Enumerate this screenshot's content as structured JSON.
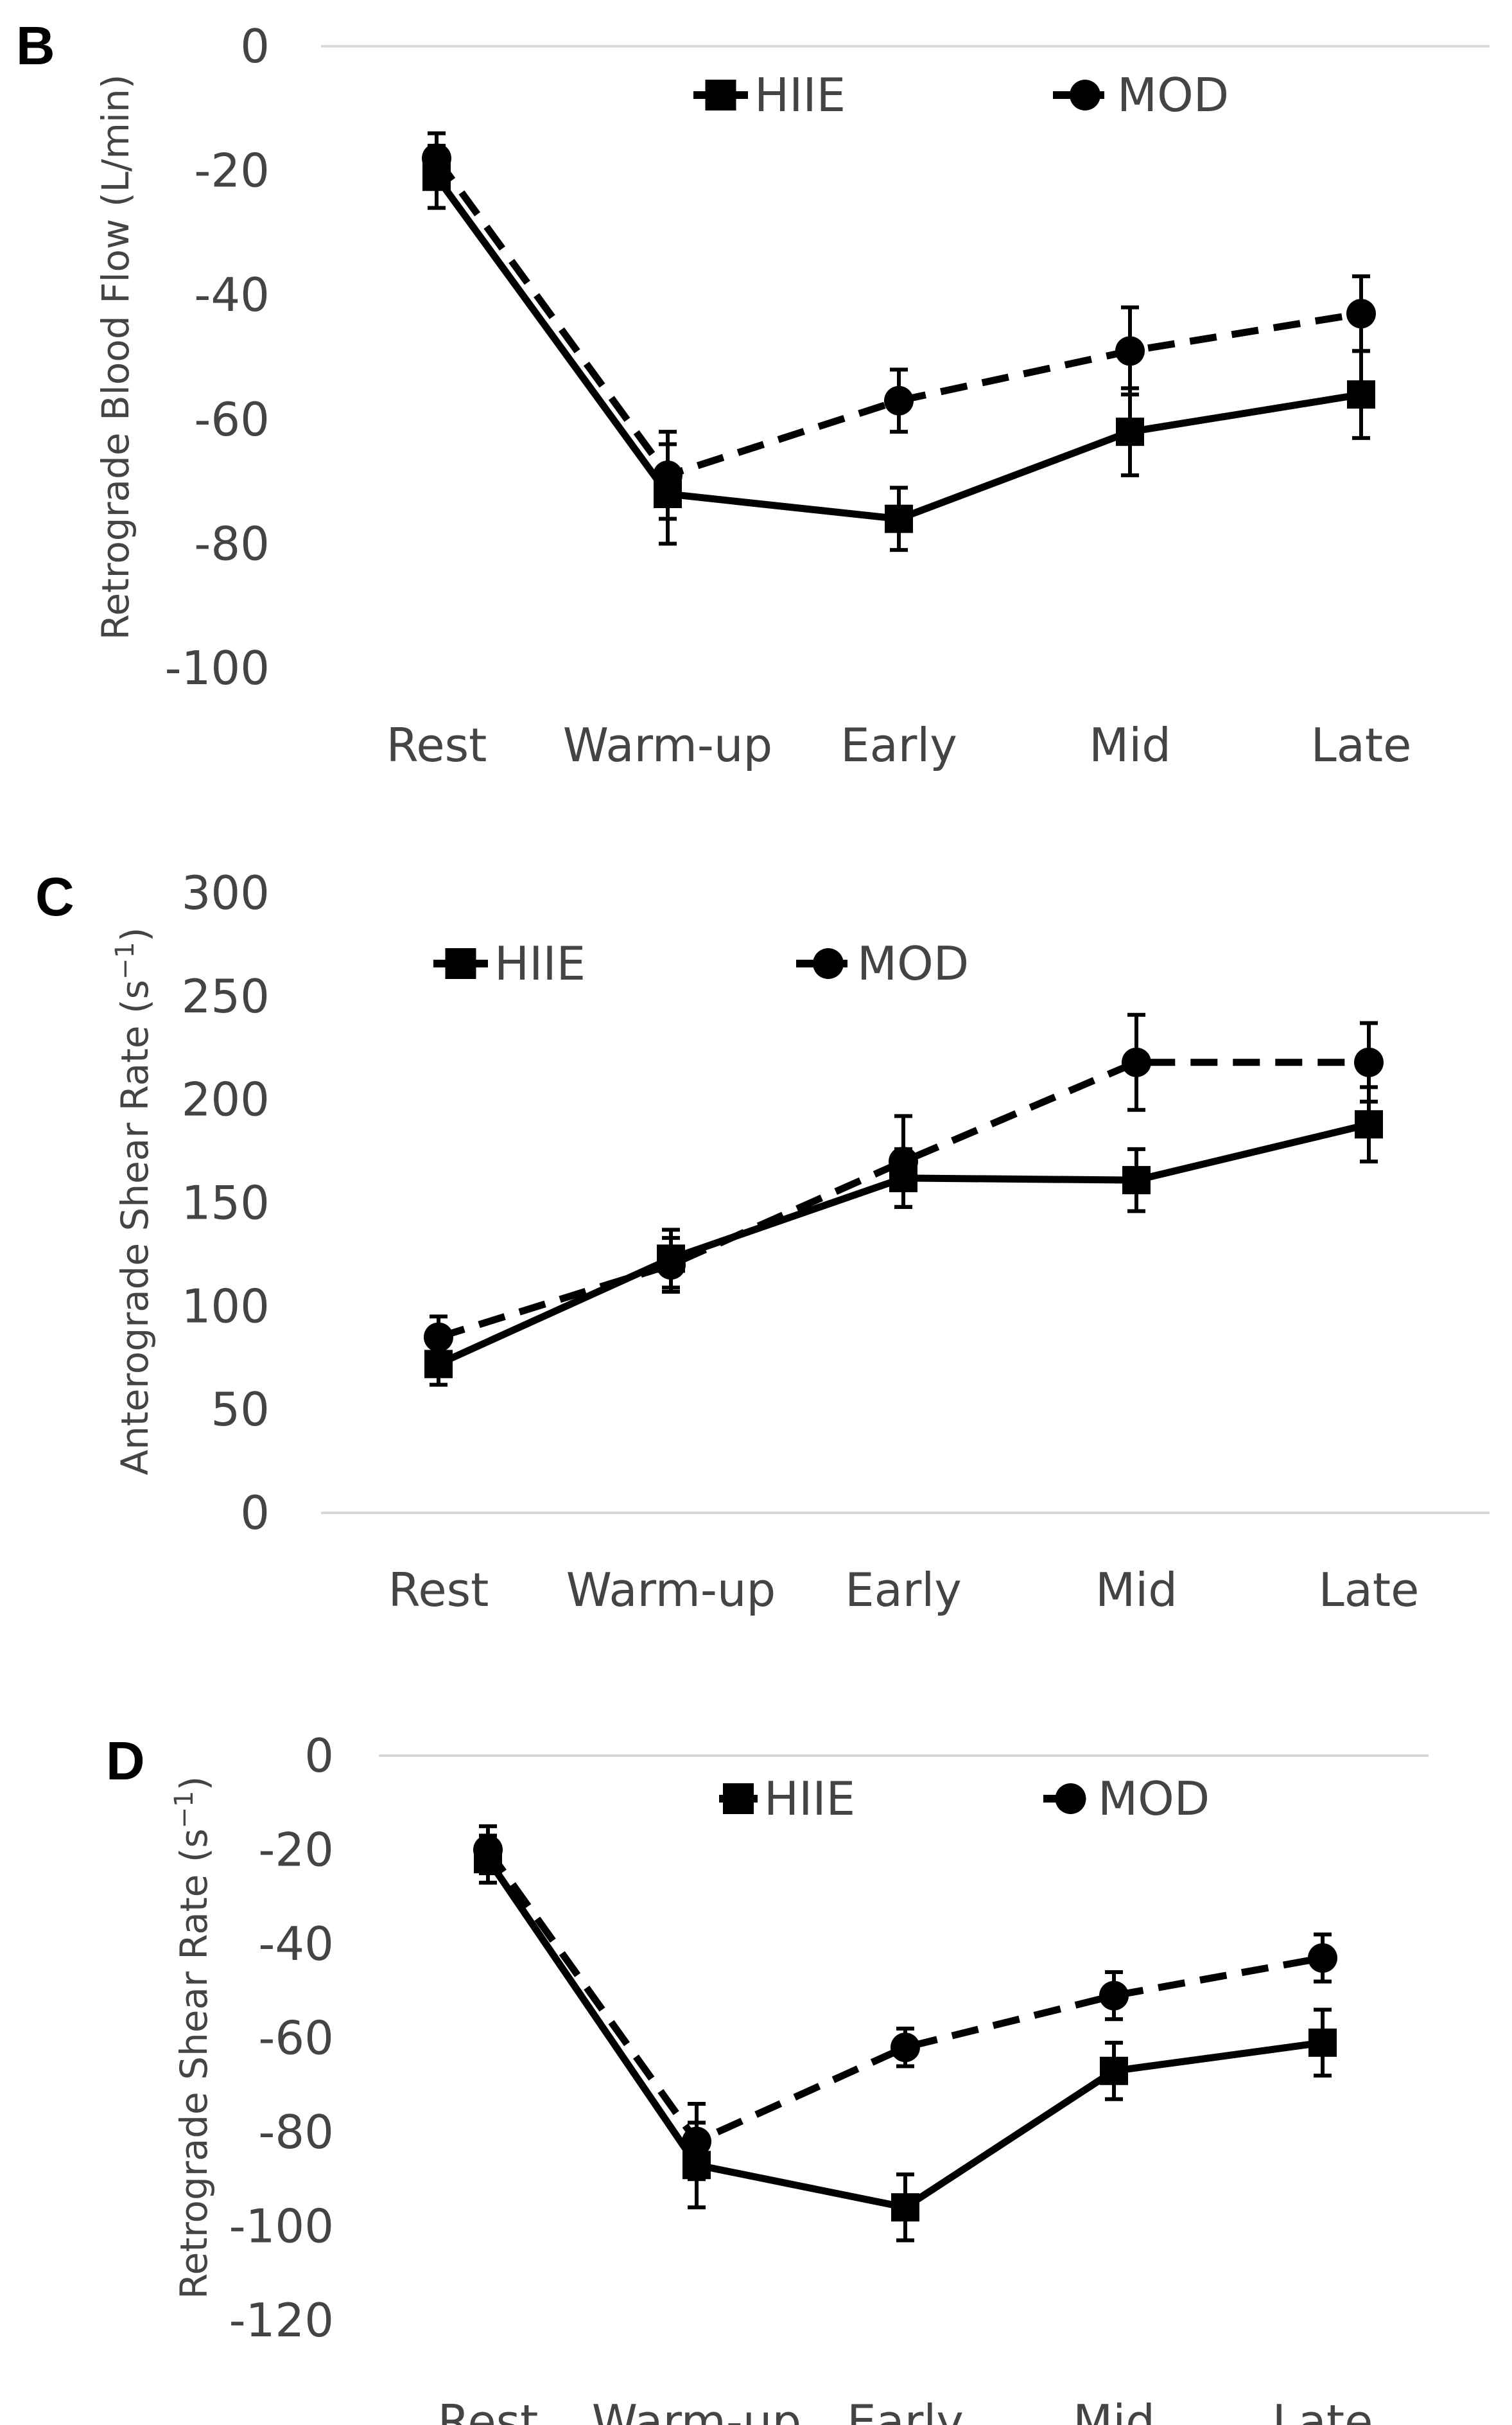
{
  "chart_data": [
    {
      "panel": "B",
      "type": "line",
      "ylabel": "Retrograde Blood Flow (L/min)",
      "xlabel": "",
      "categories": [
        "Rest",
        "Warm-up",
        "Early",
        "Mid",
        "Late"
      ],
      "ylim": [
        -100,
        0
      ],
      "yticks": [
        0,
        -20,
        -40,
        -60,
        -80,
        -100
      ],
      "yticklabels": [
        "0",
        "-20",
        "-40",
        "-60",
        "-80",
        "-100"
      ],
      "grid": "top-line",
      "legend": "top",
      "series": [
        {
          "name": "HIIE",
          "style": "solid",
          "marker": "square",
          "values": [
            -21,
            -72,
            -76,
            -62,
            -56
          ],
          "errors": [
            5,
            8,
            5,
            7,
            7
          ]
        },
        {
          "name": "MOD",
          "style": "dashed",
          "marker": "circle",
          "values": [
            -18,
            -69,
            -57,
            -49,
            -43
          ],
          "errors": [
            4,
            7,
            5,
            7,
            6
          ]
        }
      ]
    },
    {
      "panel": "C",
      "type": "line",
      "ylabel": "Anterograde Shear Rate (s",
      "ylabel_sup": "−1",
      "ylabel_close": ")",
      "xlabel": "",
      "categories": [
        "Rest",
        "Warm-up",
        "Early",
        "Mid",
        "Late"
      ],
      "ylim": [
        0,
        300
      ],
      "yticks": [
        300,
        250,
        200,
        150,
        100,
        50,
        0
      ],
      "yticklabels": [
        "300",
        "250",
        "200",
        "150",
        "100",
        "50",
        "0"
      ],
      "grid": "baseline",
      "legend": "top",
      "series": [
        {
          "name": "HIIE",
          "style": "solid",
          "marker": "square",
          "values": [
            72,
            123,
            162,
            161,
            188
          ],
          "errors": [
            10,
            14,
            14,
            15,
            18
          ]
        },
        {
          "name": "MOD",
          "style": "dashed",
          "marker": "circle",
          "values": [
            85,
            120,
            170,
            218,
            218
          ],
          "errors": [
            10,
            13,
            22,
            23,
            19
          ]
        }
      ]
    },
    {
      "panel": "D",
      "type": "line",
      "ylabel": "Retrograde Shear Rate (s",
      "ylabel_sup": "−1",
      "ylabel_close": ")",
      "xlabel": "",
      "categories": [
        "Rest",
        "Warm-up",
        "Early",
        "Mid",
        "Late"
      ],
      "ylim": [
        -120,
        0
      ],
      "yticks": [
        0,
        -20,
        -40,
        -60,
        -80,
        -100,
        -120
      ],
      "yticklabels": [
        "0",
        "-20",
        "-40",
        "-60",
        "-80",
        "-100",
        "-120"
      ],
      "grid": "top-line",
      "legend": "top",
      "series": [
        {
          "name": "HIIE",
          "style": "solid",
          "marker": "square",
          "values": [
            -22,
            -87,
            -96,
            -67,
            -61
          ],
          "errors": [
            5,
            9,
            7,
            6,
            7
          ]
        },
        {
          "name": "MOD",
          "style": "dashed",
          "marker": "circle",
          "values": [
            -20,
            -82,
            -62,
            -51,
            -43
          ],
          "errors": [
            5,
            8,
            4,
            5,
            5
          ]
        }
      ]
    }
  ]
}
